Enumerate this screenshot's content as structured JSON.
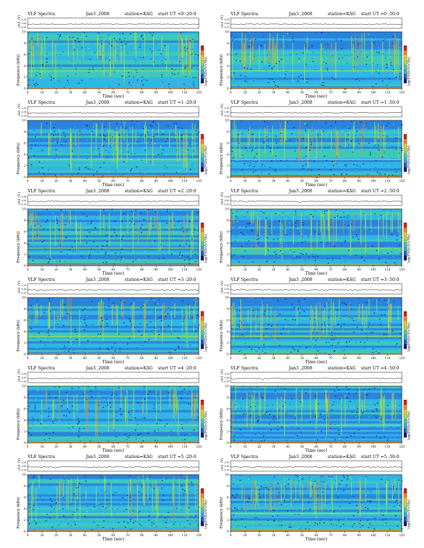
{
  "page": {
    "title_left": "VLF Spectra",
    "date": "Jan3 ,2008",
    "station": "station=KAG",
    "start_prefix": "start  UT  ="
  },
  "axis_labels": {
    "ch1": "ch1 (V)",
    "freq": "Frequency  (kHz)",
    "time": "Time  (sec)",
    "cbar": "log(PSD)(V/√Hz)"
  },
  "colors": {
    "scale": [
      "#0a1a80",
      "#1f5fd6",
      "#28b4e6",
      "#3fd69a",
      "#a8e63c",
      "#f2d21e",
      "#ff8a1a",
      "#e21a1a"
    ],
    "background": "#ffffff"
  },
  "chart_data": [
    {
      "type": "heatmap",
      "start_ut": "0 :20:0",
      "x": {
        "label": "Time  (sec)",
        "range": [
          0,
          120
        ],
        "ticks": [
          0,
          10,
          20,
          30,
          40,
          50,
          60,
          70,
          80,
          90,
          100,
          110,
          120
        ]
      },
      "y": {
        "label": "Frequency  (kHz)",
        "range": [
          0,
          10
        ],
        "ticks": [
          0,
          2,
          4,
          6,
          8,
          10
        ]
      },
      "ch1_ticks": [
        "0.30",
        "0.00",
        "-0.30"
      ]
    },
    {
      "type": "heatmap",
      "start_ut": "0 :50:0",
      "x": {
        "label": "Time  (sec)",
        "range": [
          0,
          120
        ],
        "ticks": [
          0,
          10,
          20,
          30,
          40,
          50,
          60,
          70,
          80,
          90,
          100,
          110,
          120
        ]
      },
      "y": {
        "label": "Frequency  (kHz)",
        "range": [
          0,
          10
        ],
        "ticks": [
          0,
          2,
          4,
          6,
          8,
          10
        ]
      },
      "ch1_ticks": [
        "0.30",
        "0.00",
        "-0.30"
      ]
    },
    {
      "type": "heatmap",
      "start_ut": "1 :20:0",
      "x": {
        "label": "Time  (sec)",
        "range": [
          0,
          120
        ],
        "ticks": [
          0,
          10,
          20,
          30,
          40,
          50,
          60,
          70,
          80,
          90,
          100,
          110,
          120
        ]
      },
      "y": {
        "label": "Frequency  (kHz)",
        "range": [
          0,
          10
        ],
        "ticks": [
          0,
          2,
          4,
          6,
          8,
          10
        ]
      },
      "ch1_ticks": [
        "0.30",
        "0.00",
        "-0.30"
      ]
    },
    {
      "type": "heatmap",
      "start_ut": "1 :50:0",
      "x": {
        "label": "Time  (sec)",
        "range": [
          0,
          120
        ],
        "ticks": [
          0,
          10,
          20,
          30,
          40,
          50,
          60,
          70,
          80,
          90,
          100,
          110,
          120
        ]
      },
      "y": {
        "label": "Frequency  (kHz)",
        "range": [
          0,
          10
        ],
        "ticks": [
          0,
          2,
          4,
          6,
          8,
          10
        ]
      },
      "ch1_ticks": [
        "0.30",
        "0.00",
        "-0.30"
      ]
    },
    {
      "type": "heatmap",
      "start_ut": "2 :20:0",
      "x": {
        "label": "Time  (sec)",
        "range": [
          0,
          120
        ],
        "ticks": [
          0,
          10,
          20,
          30,
          40,
          50,
          60,
          70,
          80,
          90,
          100,
          110,
          120
        ]
      },
      "y": {
        "label": "Frequency  (kHz)",
        "range": [
          0,
          10
        ],
        "ticks": [
          0,
          2,
          4,
          6,
          8,
          10
        ]
      },
      "ch1_ticks": [
        "0.30",
        "0.00",
        "-0.30"
      ]
    },
    {
      "type": "heatmap",
      "start_ut": "2 :50:0",
      "x": {
        "label": "Time  (sec)",
        "range": [
          0,
          120
        ],
        "ticks": [
          0,
          10,
          20,
          30,
          40,
          50,
          60,
          70,
          80,
          90,
          100,
          110,
          120
        ]
      },
      "y": {
        "label": "Frequency  (kHz)",
        "range": [
          0,
          10
        ],
        "ticks": [
          0,
          2,
          4,
          6,
          8,
          10
        ]
      },
      "ch1_ticks": [
        "0.30",
        "0.00",
        "-0.30"
      ]
    },
    {
      "type": "heatmap",
      "start_ut": "3 :20:0",
      "x": {
        "label": "Time  (sec)",
        "range": [
          0,
          120
        ],
        "ticks": [
          0,
          10,
          20,
          30,
          40,
          50,
          60,
          70,
          80,
          90,
          100,
          110,
          120
        ]
      },
      "y": {
        "label": "Frequency  (kHz)",
        "range": [
          0,
          10
        ],
        "ticks": [
          0,
          2,
          4,
          6,
          8,
          10
        ]
      },
      "ch1_ticks": [
        "0.30",
        "0.00",
        "-0.30"
      ]
    },
    {
      "type": "heatmap",
      "start_ut": "3 :50:0",
      "x": {
        "label": "Time  (sec)",
        "range": [
          0,
          120
        ],
        "ticks": [
          0,
          10,
          20,
          30,
          40,
          50,
          60,
          70,
          80,
          90,
          100,
          110,
          120
        ]
      },
      "y": {
        "label": "Frequency  (kHz)",
        "range": [
          0,
          10
        ],
        "ticks": [
          0,
          2,
          4,
          6,
          8,
          10
        ]
      },
      "ch1_ticks": [
        "0.30",
        "0.00",
        "-0.30"
      ]
    },
    {
      "type": "heatmap",
      "start_ut": "4 :20:0",
      "x": {
        "label": "Time  (sec)",
        "range": [
          0,
          120
        ],
        "ticks": [
          0,
          10,
          20,
          30,
          40,
          50,
          60,
          70,
          80,
          90,
          100,
          110,
          120
        ]
      },
      "y": {
        "label": "Frequency  (kHz)",
        "range": [
          0,
          10
        ],
        "ticks": [
          0,
          2,
          4,
          6,
          8,
          10
        ]
      },
      "ch1_ticks": [
        "0.30",
        "0.00",
        "-0.30"
      ]
    },
    {
      "type": "heatmap",
      "start_ut": "4 :50:0",
      "x": {
        "label": "Time  (sec)",
        "range": [
          0,
          120
        ],
        "ticks": [
          0,
          10,
          20,
          30,
          40,
          50,
          60,
          70,
          80,
          90,
          100,
          110,
          120
        ]
      },
      "y": {
        "label": "Frequency  (kHz)",
        "range": [
          0,
          10
        ],
        "ticks": [
          0,
          2,
          4,
          6,
          8,
          10
        ]
      },
      "ch1_ticks": [
        "0.30",
        "0.00",
        "-0.30"
      ]
    },
    {
      "type": "heatmap",
      "start_ut": "5 :20:0",
      "x": {
        "label": "Time  (sec)",
        "range": [
          0,
          120
        ],
        "ticks": [
          0,
          10,
          20,
          30,
          40,
          50,
          60,
          70,
          80,
          90,
          100,
          110,
          120
        ]
      },
      "y": {
        "label": "Frequency  (kHz)",
        "range": [
          0,
          10
        ],
        "ticks": [
          0,
          2,
          4,
          6,
          8,
          10
        ]
      },
      "ch1_ticks": [
        "0.30",
        "0.00",
        "-0.30"
      ]
    },
    {
      "type": "heatmap",
      "start_ut": "5 :50:0",
      "x": {
        "label": "Time  (sec)",
        "range": [
          0,
          120
        ],
        "ticks": [
          0,
          10,
          20,
          30,
          40,
          50,
          60,
          70,
          80,
          90,
          100,
          110,
          120
        ]
      },
      "y": {
        "label": "Frequency  (kHz)",
        "range": [
          0,
          10
        ],
        "ticks": [
          0,
          2,
          4,
          6,
          8,
          10
        ]
      },
      "ch1_ticks": [
        "0.30",
        "0.00",
        "-0.30"
      ]
    }
  ]
}
